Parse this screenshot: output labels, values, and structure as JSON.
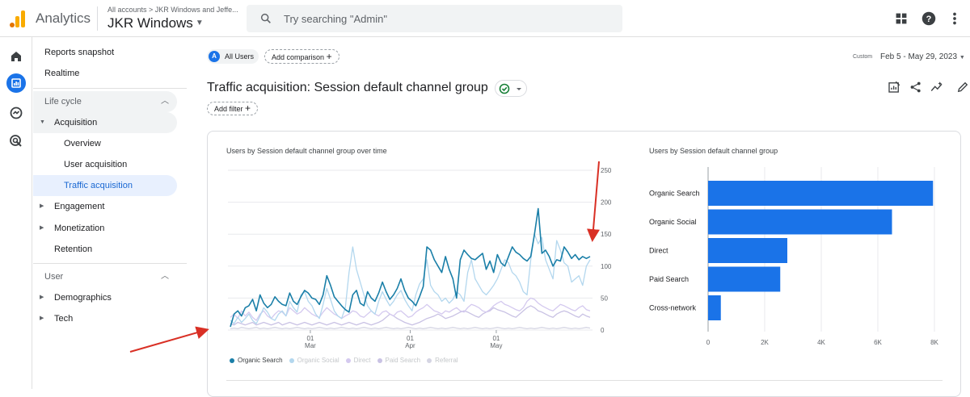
{
  "topbar": {
    "product_name": "Analytics",
    "breadcrumb": "All accounts > JKR Windows and Jeffe...",
    "property_name": "JKR Windows",
    "search_placeholder": "Try searching \"Admin\"",
    "icons": [
      "apps-grid-icon",
      "help-icon",
      "more-vert-icon"
    ]
  },
  "rail": {
    "icons": [
      "home-icon",
      "reports-icon",
      "explore-icon",
      "advertising-icon"
    ]
  },
  "nav": {
    "reports_snapshot": "Reports snapshot",
    "realtime": "Realtime",
    "lifecycle": "Life cycle",
    "acquisition": "Acquisition",
    "overview": "Overview",
    "user_acquisition": "User acquisition",
    "traffic_acquisition": "Traffic acquisition",
    "engagement": "Engagement",
    "monetization": "Monetization",
    "retention": "Retention",
    "user": "User",
    "demographics": "Demographics",
    "tech": "Tech"
  },
  "header": {
    "all_users_badge": "A",
    "all_users": "All Users",
    "add_comparison": "Add comparison",
    "date_label": "Custom",
    "date_range": "Feb 5 - May 29, 2023",
    "title": "Traffic acquisition: Session default channel group",
    "add_filter": "Add filter"
  },
  "colors": {
    "accent": "#1a73e8",
    "organic_search": "#1a7fa8",
    "organic_social": "#b3d7ee",
    "direct": "#d4c9ef",
    "paid_search": "#c9c2e4",
    "referral": "#d5d5e3",
    "arrow": "#d93025"
  },
  "chart_data": [
    {
      "type": "line",
      "title": "Users by Session default channel group over time",
      "x_ticks": [
        {
          "day": "01",
          "month": "Mar"
        },
        {
          "day": "01",
          "month": "Apr"
        },
        {
          "day": "01",
          "month": "May"
        }
      ],
      "y_ticks": [
        0,
        50,
        100,
        150,
        200,
        250
      ],
      "ylim": [
        0,
        250
      ],
      "grid": true,
      "legend_position": "bottom",
      "series": [
        {
          "name": "Organic Search",
          "values": [
            5,
            25,
            30,
            22,
            35,
            38,
            48,
            30,
            55,
            42,
            35,
            40,
            52,
            45,
            40,
            38,
            58,
            45,
            40,
            52,
            62,
            58,
            50,
            48,
            40,
            55,
            85,
            70,
            52,
            45,
            38,
            32,
            28,
            55,
            62,
            42,
            38,
            60,
            50,
            45,
            58,
            75,
            60,
            48,
            55,
            65,
            80,
            62,
            50,
            45,
            38,
            52,
            68,
            130,
            125,
            110,
            100,
            90,
            115,
            95,
            80,
            50,
            110,
            125,
            118,
            112,
            110,
            115,
            120,
            95,
            108,
            90,
            118,
            105,
            100,
            115,
            130,
            122,
            118,
            112,
            108,
            115,
            150,
            190,
            120,
            125,
            115,
            100,
            110,
            108,
            130,
            122,
            112,
            118,
            110,
            115,
            112,
            115
          ]
        },
        {
          "name": "Organic Social",
          "values": [
            15,
            10,
            20,
            12,
            18,
            25,
            15,
            10,
            22,
            35,
            28,
            18,
            15,
            25,
            30,
            22,
            45,
            35,
            28,
            55,
            60,
            45,
            38,
            25,
            18,
            40,
            65,
            48,
            30,
            22,
            18,
            35,
            90,
            130,
            95,
            75,
            55,
            38,
            30,
            25,
            45,
            60,
            48,
            38,
            45,
            55,
            62,
            48,
            38,
            30,
            55,
            72,
            80,
            110,
            70,
            60,
            55,
            45,
            50,
            42,
            48,
            60,
            55,
            45,
            90,
            110,
            80,
            70,
            60,
            55,
            62,
            70,
            80,
            95,
            110,
            105,
            90,
            85,
            75,
            60,
            55,
            110,
            150,
            135,
            145,
            110,
            95,
            80,
            140,
            125,
            105,
            100,
            75,
            80,
            85,
            70,
            100,
            110
          ]
        },
        {
          "name": "Direct",
          "values": [
            20,
            25,
            18,
            30,
            22,
            28,
            20,
            15,
            25,
            30,
            22,
            18,
            25,
            30,
            28,
            22,
            35,
            30,
            25,
            28,
            35,
            30,
            25,
            22,
            20,
            28,
            35,
            30,
            25,
            22,
            18,
            22,
            25,
            30,
            28,
            22,
            20,
            25,
            30,
            25,
            22,
            28,
            30,
            25,
            22,
            28,
            30,
            25,
            20,
            22,
            28,
            32,
            35,
            40,
            35,
            30,
            28,
            25,
            30,
            28,
            32,
            35,
            30,
            28,
            35,
            40,
            38,
            35,
            30,
            28,
            32,
            38,
            42,
            45,
            40,
            38,
            35,
            32,
            30,
            35,
            45,
            50,
            48,
            42,
            38,
            35,
            32,
            30,
            35,
            40,
            38,
            35,
            32,
            30,
            35,
            38,
            32,
            30
          ]
        },
        {
          "name": "Paid Search",
          "values": [
            10,
            8,
            12,
            10,
            8,
            10,
            12,
            8,
            10,
            12,
            10,
            8,
            10,
            12,
            8,
            10,
            12,
            10,
            8,
            10,
            12,
            10,
            8,
            10,
            12,
            10,
            8,
            10,
            12,
            10,
            8,
            10,
            12,
            10,
            8,
            10,
            12,
            10,
            8,
            10,
            12,
            15,
            20,
            25,
            22,
            18,
            15,
            12,
            10,
            8,
            10,
            12,
            15,
            18,
            20,
            22,
            25,
            22,
            18,
            20,
            22,
            25,
            28,
            30,
            28,
            25,
            22,
            20,
            25,
            28,
            30,
            35,
            32,
            30,
            28,
            25,
            22,
            20,
            25,
            30,
            35,
            38,
            35,
            30,
            28,
            25,
            22,
            20,
            25,
            28,
            30,
            28,
            25,
            22,
            20,
            25,
            22,
            20
          ]
        },
        {
          "name": "Referral",
          "values": [
            2,
            3,
            2,
            4,
            3,
            2,
            3,
            4,
            2,
            3,
            2,
            3,
            4,
            3,
            2,
            3,
            2,
            3,
            4,
            3,
            2,
            3,
            2,
            3,
            4,
            3,
            2,
            3,
            2,
            3,
            4,
            3,
            2,
            3,
            2,
            3,
            4,
            3,
            2,
            3,
            2,
            3,
            4,
            3,
            2,
            3,
            2,
            3,
            4,
            3,
            2,
            3,
            2,
            3,
            4,
            3,
            2,
            3,
            2,
            3,
            4,
            3,
            2,
            3,
            2,
            3,
            4,
            3,
            2,
            3,
            2,
            3,
            4,
            3,
            2,
            3,
            2,
            3,
            4,
            3,
            2,
            3,
            2,
            3,
            4,
            3,
            2,
            3,
            2,
            3,
            4,
            3,
            2,
            3,
            2,
            3,
            4,
            3
          ]
        }
      ]
    },
    {
      "type": "bar",
      "orientation": "horizontal",
      "title": "Users by Session default channel group",
      "categories": [
        "Organic Search",
        "Organic Social",
        "Direct",
        "Paid Search",
        "Cross-network"
      ],
      "values": [
        7950,
        6500,
        2800,
        2550,
        450
      ],
      "x_ticks": [
        "0",
        "2K",
        "4K",
        "6K",
        "8K"
      ],
      "xlim": [
        0,
        8000
      ],
      "grid": true
    }
  ]
}
